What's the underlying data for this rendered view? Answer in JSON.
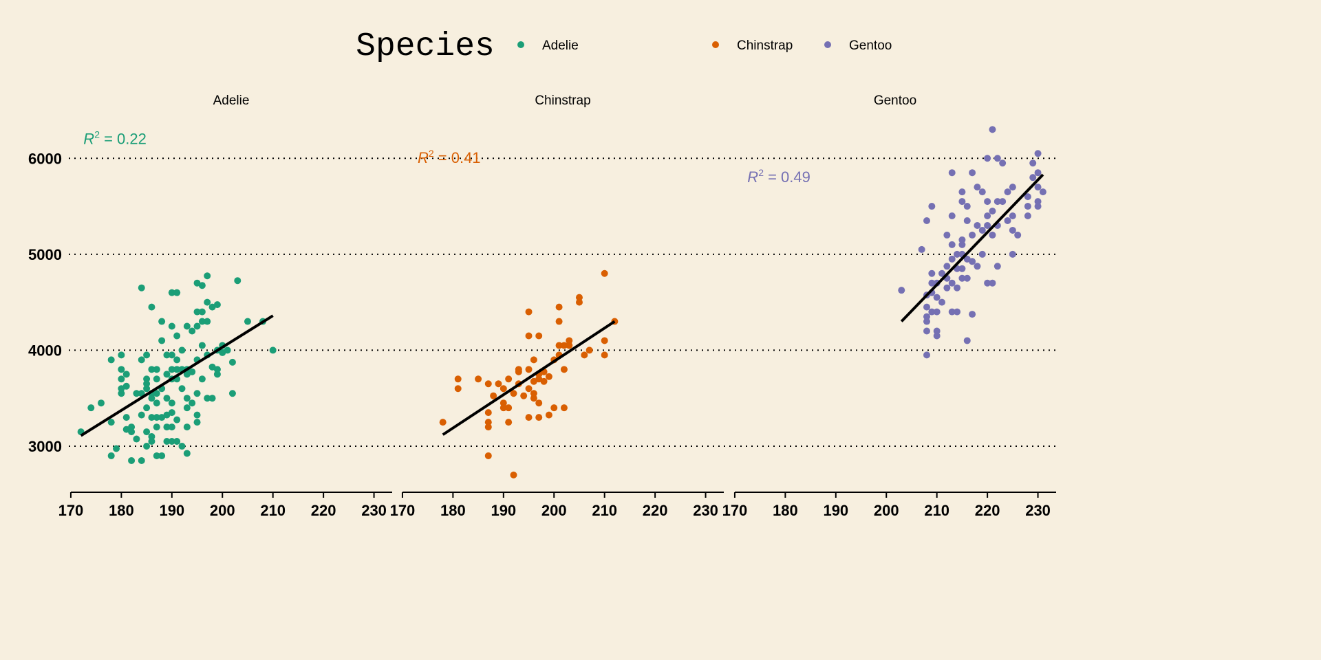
{
  "chart_data": {
    "type": "scatter",
    "xlabel": "",
    "ylabel": "",
    "xlim": [
      169.6,
      233.6
    ],
    "ylim": [
      2520,
      6360
    ],
    "xticks": [
      170,
      180,
      190,
      200,
      210,
      220,
      230
    ],
    "yticks": [
      3000,
      4000,
      5000,
      6000
    ],
    "grid": "horizontal dotted",
    "legend": {
      "title": "Species",
      "placement": "top",
      "entries": [
        "Adelie",
        "Chinstrap",
        "Gentoo"
      ]
    },
    "colors": {
      "Adelie": "#1b9e77",
      "Chinstrap": "#d95f02",
      "Gentoo": "#7570b3"
    },
    "panels": [
      {
        "name": "Adelie",
        "r2_label": "= 0.22",
        "r2_pos": [
          172.5,
          6150
        ],
        "fit": [
          [
            172,
            3110
          ],
          [
            210,
            4360
          ]
        ],
        "points": [
          [
            172,
            3150
          ],
          [
            174,
            3400
          ],
          [
            176,
            3450
          ],
          [
            178,
            3900
          ],
          [
            178,
            3250
          ],
          [
            178,
            2900
          ],
          [
            179,
            2975
          ],
          [
            180,
            3950
          ],
          [
            180,
            3800
          ],
          [
            180,
            3700
          ],
          [
            180,
            3600
          ],
          [
            180,
            3550
          ],
          [
            181,
            3750
          ],
          [
            181,
            3625
          ],
          [
            181,
            3175
          ],
          [
            181,
            3300
          ],
          [
            182,
            3200
          ],
          [
            182,
            3150
          ],
          [
            182,
            2850
          ],
          [
            183,
            3550
          ],
          [
            183,
            3075
          ],
          [
            184,
            4650
          ],
          [
            184,
            3900
          ],
          [
            184,
            3550
          ],
          [
            184,
            3325
          ],
          [
            184,
            2850
          ],
          [
            185,
            3950
          ],
          [
            185,
            3700
          ],
          [
            185,
            3650
          ],
          [
            185,
            3600
          ],
          [
            185,
            3400
          ],
          [
            185,
            3150
          ],
          [
            185,
            3000
          ],
          [
            186,
            4450
          ],
          [
            186,
            3800
          ],
          [
            186,
            3550
          ],
          [
            186,
            3500
          ],
          [
            186,
            3300
          ],
          [
            186,
            3100
          ],
          [
            186,
            3050
          ],
          [
            187,
            3800
          ],
          [
            187,
            3700
          ],
          [
            187,
            3550
          ],
          [
            187,
            3450
          ],
          [
            187,
            3300
          ],
          [
            187,
            3200
          ],
          [
            187,
            2900
          ],
          [
            188,
            4300
          ],
          [
            188,
            4100
          ],
          [
            188,
            3600
          ],
          [
            188,
            3300
          ],
          [
            188,
            2900
          ],
          [
            189,
            3950
          ],
          [
            189,
            3750
          ],
          [
            189,
            3500
          ],
          [
            189,
            3325
          ],
          [
            189,
            3200
          ],
          [
            189,
            3050
          ],
          [
            190,
            4600
          ],
          [
            190,
            4250
          ],
          [
            190,
            3950
          ],
          [
            190,
            3800
          ],
          [
            190,
            3700
          ],
          [
            190,
            3450
          ],
          [
            190,
            3350
          ],
          [
            190,
            3200
          ],
          [
            190,
            3050
          ],
          [
            191,
            4600
          ],
          [
            191,
            4150
          ],
          [
            191,
            3900
          ],
          [
            191,
            3800
          ],
          [
            191,
            3700
          ],
          [
            191,
            3275
          ],
          [
            191,
            3050
          ],
          [
            192,
            4000
          ],
          [
            192,
            3800
          ],
          [
            192,
            3600
          ],
          [
            192,
            3000
          ],
          [
            193,
            4250
          ],
          [
            193,
            3800
          ],
          [
            193,
            3750
          ],
          [
            193,
            3500
          ],
          [
            193,
            3400
          ],
          [
            193,
            3200
          ],
          [
            193,
            2925
          ],
          [
            194,
            4200
          ],
          [
            194,
            3775
          ],
          [
            194,
            3450
          ],
          [
            195,
            4700
          ],
          [
            195,
            4400
          ],
          [
            195,
            4250
          ],
          [
            195,
            3900
          ],
          [
            195,
            3550
          ],
          [
            195,
            3325
          ],
          [
            195,
            3250
          ],
          [
            196,
            4675
          ],
          [
            196,
            4400
          ],
          [
            196,
            4300
          ],
          [
            196,
            4050
          ],
          [
            196,
            3700
          ],
          [
            197,
            4775
          ],
          [
            197,
            4500
          ],
          [
            197,
            4300
          ],
          [
            197,
            3950
          ],
          [
            197,
            3500
          ],
          [
            198,
            4450
          ],
          [
            198,
            3825
          ],
          [
            198,
            3500
          ],
          [
            199,
            4475
          ],
          [
            199,
            4000
          ],
          [
            199,
            3800
          ],
          [
            199,
            3750
          ],
          [
            200,
            4050
          ],
          [
            200,
            3975
          ],
          [
            201,
            4000
          ],
          [
            202,
            3875
          ],
          [
            202,
            3550
          ],
          [
            203,
            4725
          ],
          [
            205,
            4300
          ],
          [
            208,
            4300
          ],
          [
            210,
            4000
          ]
        ]
      },
      {
        "name": "Chinstrap",
        "r2_label": "= 0.41",
        "r2_pos": [
          173,
          5950
        ],
        "fit": [
          [
            178,
            3120
          ],
          [
            212,
            4300
          ]
        ],
        "points": [
          [
            178,
            3250
          ],
          [
            181,
            3700
          ],
          [
            181,
            3600
          ],
          [
            185,
            3700
          ],
          [
            187,
            3650
          ],
          [
            187,
            3350
          ],
          [
            187,
            3250
          ],
          [
            187,
            3200
          ],
          [
            187,
            2900
          ],
          [
            188,
            3525
          ],
          [
            189,
            3650
          ],
          [
            190,
            3600
          ],
          [
            190,
            3450
          ],
          [
            190,
            3400
          ],
          [
            191,
            3700
          ],
          [
            191,
            3250
          ],
          [
            191,
            3400
          ],
          [
            192,
            3550
          ],
          [
            192,
            2700
          ],
          [
            193,
            3800
          ],
          [
            193,
            3775
          ],
          [
            193,
            3650
          ],
          [
            194,
            3525
          ],
          [
            195,
            4400
          ],
          [
            195,
            4150
          ],
          [
            195,
            3800
          ],
          [
            195,
            3600
          ],
          [
            195,
            3300
          ],
          [
            196,
            3900
          ],
          [
            196,
            3675
          ],
          [
            196,
            3550
          ],
          [
            196,
            3500
          ],
          [
            197,
            4150
          ],
          [
            197,
            3750
          ],
          [
            197,
            3700
          ],
          [
            197,
            3450
          ],
          [
            197,
            3300
          ],
          [
            198,
            3775
          ],
          [
            198,
            3675
          ],
          [
            199,
            3725
          ],
          [
            199,
            3325
          ],
          [
            200,
            3900
          ],
          [
            200,
            3400
          ],
          [
            201,
            4450
          ],
          [
            201,
            4300
          ],
          [
            201,
            4050
          ],
          [
            201,
            3950
          ],
          [
            202,
            4050
          ],
          [
            202,
            3400
          ],
          [
            202,
            3800
          ],
          [
            203,
            4100
          ],
          [
            203,
            4050
          ],
          [
            205,
            4550
          ],
          [
            205,
            4500
          ],
          [
            206,
            3950
          ],
          [
            207,
            4000
          ],
          [
            210,
            4800
          ],
          [
            210,
            4100
          ],
          [
            210,
            3950
          ],
          [
            212,
            4300
          ]
        ]
      },
      {
        "name": "Gentoo",
        "r2_label": "= 0.49",
        "r2_pos": [
          172.5,
          5750
        ],
        "fit": [
          [
            203,
            4300
          ],
          [
            231,
            5830
          ]
        ],
        "points": [
          [
            203,
            4625
          ],
          [
            207,
            5050
          ],
          [
            208,
            5350
          ],
          [
            208,
            4575
          ],
          [
            208,
            4450
          ],
          [
            208,
            4350
          ],
          [
            208,
            4300
          ],
          [
            208,
            4200
          ],
          [
            208,
            3950
          ],
          [
            209,
            5500
          ],
          [
            209,
            4800
          ],
          [
            209,
            4700
          ],
          [
            209,
            4600
          ],
          [
            209,
            4400
          ],
          [
            210,
            4700
          ],
          [
            210,
            4550
          ],
          [
            210,
            4400
          ],
          [
            210,
            4200
          ],
          [
            210,
            4150
          ],
          [
            211,
            4800
          ],
          [
            211,
            4500
          ],
          [
            212,
            4750
          ],
          [
            212,
            4875
          ],
          [
            212,
            5200
          ],
          [
            212,
            4650
          ],
          [
            213,
            5850
          ],
          [
            213,
            5400
          ],
          [
            213,
            5100
          ],
          [
            213,
            4950
          ],
          [
            213,
            4700
          ],
          [
            213,
            4400
          ],
          [
            214,
            5000
          ],
          [
            214,
            4850
          ],
          [
            214,
            4650
          ],
          [
            214,
            4400
          ],
          [
            215,
            5650
          ],
          [
            215,
            5550
          ],
          [
            215,
            5150
          ],
          [
            215,
            5100
          ],
          [
            215,
            5000
          ],
          [
            215,
            4850
          ],
          [
            215,
            4750
          ],
          [
            216,
            5500
          ],
          [
            216,
            5350
          ],
          [
            216,
            4950
          ],
          [
            216,
            4750
          ],
          [
            216,
            4100
          ],
          [
            217,
            5850
          ],
          [
            217,
            5200
          ],
          [
            217,
            4925
          ],
          [
            217,
            4375
          ],
          [
            218,
            5700
          ],
          [
            218,
            5300
          ],
          [
            218,
            4875
          ],
          [
            219,
            5650
          ],
          [
            219,
            5250
          ],
          [
            219,
            5000
          ],
          [
            220,
            6000
          ],
          [
            220,
            5550
          ],
          [
            220,
            5400
          ],
          [
            220,
            5300
          ],
          [
            220,
            4700
          ],
          [
            221,
            6300
          ],
          [
            221,
            5450
          ],
          [
            221,
            5200
          ],
          [
            221,
            4700
          ],
          [
            222,
            6000
          ],
          [
            222,
            5550
          ],
          [
            222,
            5300
          ],
          [
            222,
            4875
          ],
          [
            223,
            5950
          ],
          [
            223,
            5550
          ],
          [
            224,
            5650
          ],
          [
            224,
            5350
          ],
          [
            225,
            5700
          ],
          [
            225,
            5400
          ],
          [
            225,
            5250
          ],
          [
            225,
            5000
          ],
          [
            226,
            5200
          ],
          [
            228,
            5600
          ],
          [
            228,
            5400
          ],
          [
            228,
            5500
          ],
          [
            229,
            5950
          ],
          [
            229,
            5800
          ],
          [
            230,
            6050
          ],
          [
            230,
            5850
          ],
          [
            230,
            5700
          ],
          [
            230,
            5550
          ],
          [
            230,
            5500
          ],
          [
            231,
            5650
          ]
        ]
      }
    ]
  }
}
